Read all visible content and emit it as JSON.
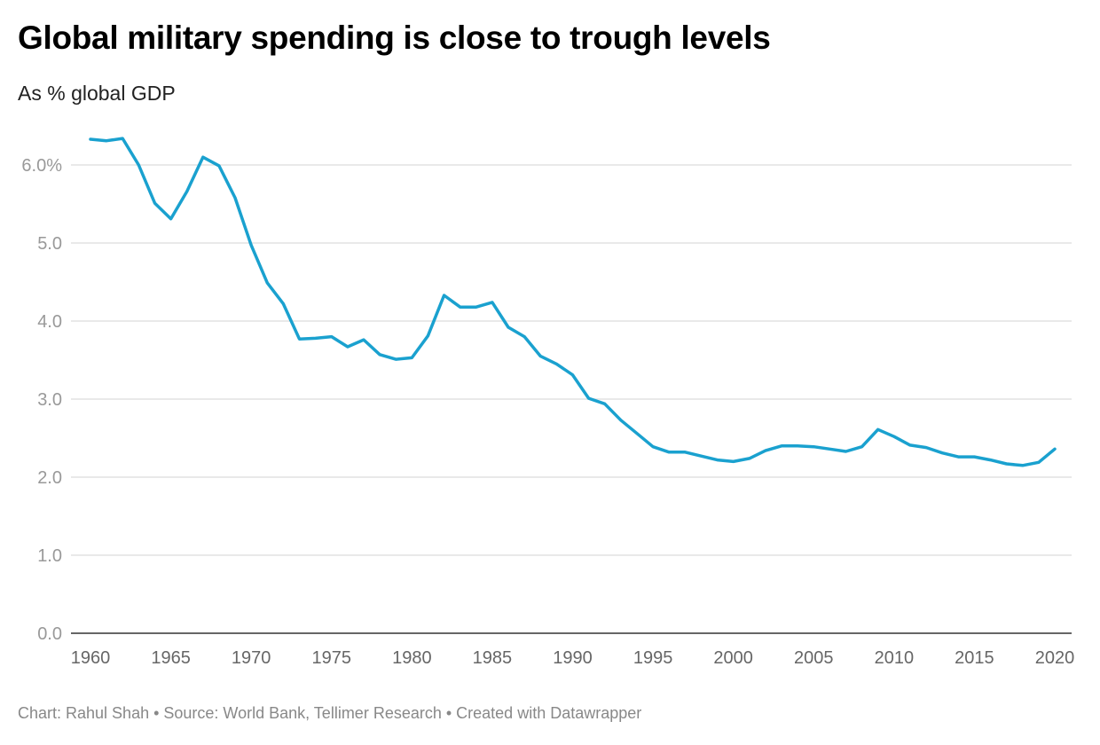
{
  "title": "Global military spending is close to trough levels",
  "subtitle": "As % global GDP",
  "footer": "Chart: Rahul Shah • Source: World Bank, Tellimer Research • Created with Datawrapper",
  "chart_data": {
    "type": "line",
    "title": "Global military spending is close to trough levels",
    "ylabel": "As % global GDP",
    "xlim": [
      1960,
      2020
    ],
    "ylim": [
      0,
      6.5
    ],
    "grid": true,
    "y_ticks": [
      0,
      1,
      2,
      3,
      4,
      5,
      6
    ],
    "y_tick_labels": [
      "0.0",
      "1.0",
      "2.0",
      "3.0",
      "4.0",
      "5.0",
      "6.0%"
    ],
    "x_ticks": [
      1960,
      1965,
      1970,
      1975,
      1980,
      1985,
      1990,
      1995,
      2000,
      2005,
      2010,
      2015,
      2020
    ],
    "x_tick_labels": [
      "1960",
      "1965",
      "1970",
      "1975",
      "1980",
      "1985",
      "1990",
      "1995",
      "2000",
      "2005",
      "2010",
      "2015",
      "2020"
    ],
    "line_color": "#1aa1cf",
    "x": [
      1960,
      1961,
      1962,
      1963,
      1964,
      1965,
      1966,
      1967,
      1968,
      1969,
      1970,
      1971,
      1972,
      1973,
      1974,
      1975,
      1976,
      1977,
      1978,
      1979,
      1980,
      1981,
      1982,
      1983,
      1984,
      1985,
      1986,
      1987,
      1988,
      1989,
      1990,
      1991,
      1992,
      1993,
      1994,
      1995,
      1996,
      1997,
      1998,
      1999,
      2000,
      2001,
      2002,
      2003,
      2004,
      2005,
      2006,
      2007,
      2008,
      2009,
      2010,
      2011,
      2012,
      2013,
      2014,
      2015,
      2016,
      2017,
      2018,
      2019,
      2020
    ],
    "values": [
      6.33,
      6.31,
      6.34,
      6.0,
      5.51,
      5.31,
      5.66,
      6.1,
      5.99,
      5.58,
      4.97,
      4.49,
      4.22,
      3.77,
      3.78,
      3.8,
      3.67,
      3.76,
      3.57,
      3.51,
      3.53,
      3.81,
      4.33,
      4.18,
      4.18,
      4.24,
      3.92,
      3.8,
      3.55,
      3.45,
      3.31,
      3.01,
      2.94,
      2.73,
      2.56,
      2.39,
      2.32,
      2.32,
      2.27,
      2.22,
      2.2,
      2.24,
      2.34,
      2.4,
      2.4,
      2.39,
      2.36,
      2.33,
      2.39,
      2.61,
      2.52,
      2.41,
      2.38,
      2.31,
      2.26,
      2.26,
      2.22,
      2.17,
      2.15,
      2.19,
      2.36
    ]
  }
}
